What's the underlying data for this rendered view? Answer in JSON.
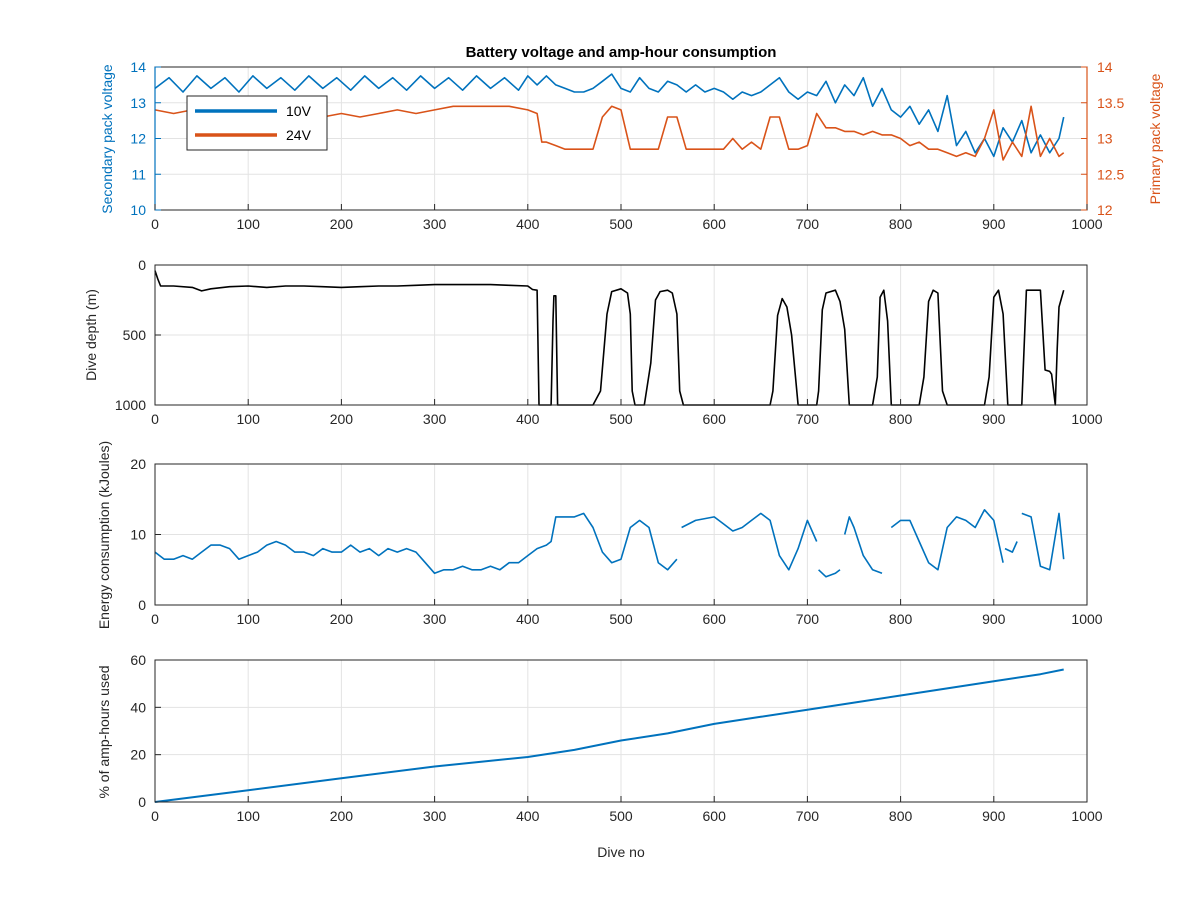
{
  "figure": {
    "background": "#ffffff"
  },
  "colors": {
    "blue": "#0072BD",
    "orange": "#D95319",
    "black": "#000000",
    "axis": "#262626",
    "grid": "#e3e3e3"
  },
  "chart_data": [
    {
      "type": "line",
      "title": "Battery voltage and amp-hour consumption",
      "xlabel": "",
      "ylabel": "Secondary pack voltage",
      "ylabel_right": "Primary pack voltage",
      "xlim": [
        0,
        1000
      ],
      "ylim": [
        10,
        14
      ],
      "ylim_right": [
        12,
        14
      ],
      "xticks": [
        0,
        100,
        200,
        300,
        400,
        500,
        600,
        700,
        800,
        900,
        1000
      ],
      "yticks": [
        10,
        11,
        12,
        13,
        14
      ],
      "yticks_right": [
        12,
        12.5,
        13,
        13.5,
        14
      ],
      "ytick_labels_right": [
        "12",
        "12.5",
        "13",
        "13.5",
        "14"
      ],
      "grid": true,
      "legend_position": "top-left",
      "series": [
        {
          "name": "10V",
          "axis": "left",
          "color": "#0072BD",
          "x": [
            0,
            15,
            30,
            45,
            60,
            75,
            90,
            105,
            120,
            135,
            150,
            165,
            180,
            195,
            210,
            225,
            240,
            255,
            270,
            285,
            300,
            315,
            330,
            345,
            360,
            375,
            390,
            400,
            410,
            420,
            430,
            440,
            450,
            460,
            470,
            480,
            490,
            500,
            510,
            520,
            530,
            540,
            550,
            560,
            570,
            580,
            590,
            600,
            610,
            620,
            630,
            640,
            650,
            660,
            670,
            680,
            690,
            700,
            710,
            720,
            730,
            740,
            750,
            760,
            770,
            780,
            790,
            800,
            810,
            820,
            830,
            840,
            850,
            860,
            870,
            880,
            890,
            900,
            910,
            920,
            930,
            940,
            950,
            960,
            970,
            975
          ],
          "y": [
            13.4,
            13.7,
            13.3,
            13.75,
            13.4,
            13.7,
            13.3,
            13.75,
            13.4,
            13.7,
            13.35,
            13.75,
            13.4,
            13.7,
            13.35,
            13.75,
            13.4,
            13.7,
            13.35,
            13.75,
            13.4,
            13.7,
            13.35,
            13.75,
            13.4,
            13.7,
            13.35,
            13.75,
            13.5,
            13.75,
            13.5,
            13.4,
            13.3,
            13.3,
            13.4,
            13.6,
            13.8,
            13.4,
            13.3,
            13.7,
            13.4,
            13.3,
            13.6,
            13.5,
            13.3,
            13.5,
            13.3,
            13.4,
            13.3,
            13.1,
            13.3,
            13.2,
            13.3,
            13.5,
            13.7,
            13.3,
            13.1,
            13.3,
            13.2,
            13.6,
            13.0,
            13.5,
            13.2,
            13.7,
            12.9,
            13.4,
            12.8,
            12.6,
            12.9,
            12.4,
            12.8,
            12.2,
            13.2,
            11.8,
            12.2,
            11.6,
            12.0,
            11.5,
            12.3,
            11.9,
            12.5,
            11.6,
            12.1,
            11.6,
            12.0,
            12.6
          ]
        },
        {
          "name": "24V",
          "axis": "right",
          "color": "#D95319",
          "x": [
            0,
            20,
            40,
            60,
            80,
            100,
            120,
            140,
            160,
            180,
            200,
            220,
            240,
            260,
            280,
            300,
            320,
            340,
            360,
            380,
            400,
            410,
            415,
            420,
            430,
            440,
            450,
            460,
            470,
            480,
            490,
            500,
            510,
            520,
            530,
            540,
            550,
            560,
            570,
            580,
            590,
            600,
            610,
            620,
            630,
            640,
            650,
            660,
            670,
            680,
            690,
            700,
            710,
            720,
            730,
            740,
            750,
            760,
            770,
            780,
            790,
            800,
            810,
            820,
            830,
            840,
            850,
            860,
            870,
            880,
            890,
            900,
            910,
            920,
            930,
            940,
            950,
            960,
            970,
            975
          ],
          "y": [
            13.4,
            13.35,
            13.4,
            13.3,
            13.35,
            13.3,
            13.3,
            13.35,
            13.3,
            13.3,
            13.35,
            13.3,
            13.35,
            13.4,
            13.35,
            13.4,
            13.45,
            13.45,
            13.45,
            13.45,
            13.4,
            13.35,
            12.95,
            12.95,
            12.9,
            12.85,
            12.85,
            12.85,
            12.85,
            13.3,
            13.45,
            13.4,
            12.85,
            12.85,
            12.85,
            12.85,
            13.3,
            13.3,
            12.85,
            12.85,
            12.85,
            12.85,
            12.85,
            13.0,
            12.85,
            12.95,
            12.85,
            13.3,
            13.3,
            12.85,
            12.85,
            12.9,
            13.35,
            13.15,
            13.15,
            13.1,
            13.1,
            13.05,
            13.1,
            13.05,
            13.05,
            13.0,
            12.9,
            12.95,
            12.85,
            12.85,
            12.8,
            12.75,
            12.8,
            12.75,
            13.0,
            13.4,
            12.7,
            12.95,
            12.75,
            13.45,
            12.75,
            13.0,
            12.75,
            12.8
          ]
        }
      ]
    },
    {
      "type": "line",
      "title": "",
      "xlabel": "",
      "ylabel": "Dive depth (m)",
      "xlim": [
        0,
        1000
      ],
      "ylim": [
        0,
        1000
      ],
      "y_reversed": true,
      "xticks": [
        0,
        100,
        200,
        300,
        400,
        500,
        600,
        700,
        800,
        900,
        1000
      ],
      "yticks": [
        0,
        500,
        1000
      ],
      "grid": true,
      "series": [
        {
          "color": "#000000",
          "x": [
            0,
            3,
            6,
            20,
            40,
            50,
            60,
            80,
            100,
            120,
            140,
            160,
            180,
            200,
            220,
            240,
            260,
            280,
            300,
            320,
            340,
            360,
            380,
            400,
            405,
            410,
            412,
            415,
            418,
            420,
            423,
            425,
            427,
            428,
            430,
            432,
            435,
            450,
            470,
            478,
            485,
            490,
            500,
            507,
            510,
            512,
            515,
            520,
            525,
            532,
            537,
            542,
            550,
            555,
            560,
            563,
            567,
            570,
            590,
            610,
            630,
            650,
            660,
            663,
            668,
            673,
            678,
            683,
            690,
            710,
            712,
            716,
            720,
            730,
            735,
            740,
            745,
            760,
            770,
            775,
            778,
            782,
            786,
            790,
            800,
            820,
            825,
            830,
            835,
            840,
            845,
            850,
            870,
            890,
            895,
            900,
            905,
            910,
            915,
            930,
            935,
            940,
            945,
            950,
            955,
            960,
            962,
            966,
            968,
            970,
            975
          ],
          "y": [
            40,
            100,
            150,
            150,
            160,
            185,
            170,
            155,
            150,
            160,
            150,
            150,
            155,
            160,
            155,
            150,
            150,
            145,
            140,
            140,
            140,
            140,
            145,
            150,
            175,
            180,
            1000,
            1000,
            1000,
            1000,
            1000,
            1000,
            400,
            220,
            220,
            1000,
            1000,
            1000,
            1000,
            900,
            350,
            190,
            170,
            200,
            350,
            900,
            1000,
            1000,
            1000,
            700,
            250,
            190,
            180,
            200,
            350,
            900,
            1000,
            1000,
            1000,
            1000,
            1000,
            1000,
            1000,
            900,
            360,
            240,
            300,
            500,
            1000,
            1000,
            900,
            320,
            200,
            180,
            260,
            460,
            1000,
            1000,
            1000,
            800,
            230,
            180,
            400,
            1000,
            1000,
            1000,
            800,
            260,
            180,
            200,
            900,
            1000,
            1000,
            1000,
            800,
            230,
            180,
            350,
            1000,
            1000,
            180,
            180,
            180,
            180,
            750,
            760,
            780,
            1000,
            600,
            300,
            180
          ]
        }
      ]
    },
    {
      "type": "line",
      "title": "",
      "xlabel": "",
      "ylabel": "Energy consumption (kJoules)",
      "xlim": [
        0,
        1000
      ],
      "ylim": [
        0,
        20
      ],
      "xticks": [
        0,
        100,
        200,
        300,
        400,
        500,
        600,
        700,
        800,
        900,
        1000
      ],
      "yticks": [
        0,
        10,
        20
      ],
      "grid": true,
      "series": [
        {
          "color": "#0072BD",
          "x": [
            0,
            10,
            20,
            30,
            40,
            50,
            60,
            70,
            80,
            90,
            100,
            110,
            120,
            130,
            140,
            150,
            160,
            170,
            180,
            190,
            200,
            210,
            220,
            230,
            240,
            250,
            260,
            270,
            280,
            290,
            300,
            310,
            320,
            330,
            340,
            350,
            360,
            370,
            380,
            390,
            400,
            410,
            420,
            425,
            430,
            440,
            450,
            460,
            470,
            480,
            490,
            500,
            510,
            520,
            530,
            540,
            550,
            560,
            null,
            565,
            580,
            600,
            610,
            620,
            630,
            640,
            650,
            660,
            670,
            680,
            690,
            700,
            710,
            null,
            712,
            720,
            730,
            735,
            null,
            740,
            745,
            750,
            760,
            770,
            780,
            null,
            790,
            800,
            810,
            820,
            830,
            840,
            850,
            860,
            870,
            880,
            890,
            900,
            910,
            null,
            912,
            920,
            925,
            null,
            930,
            940,
            950,
            960,
            970,
            975
          ],
          "y": [
            7.5,
            6.5,
            6.5,
            7,
            6.5,
            7.5,
            8.5,
            8.5,
            8,
            6.5,
            7,
            7.5,
            8.5,
            9,
            8.5,
            7.5,
            7.5,
            7,
            8,
            7.5,
            7.5,
            8.5,
            7.5,
            8,
            7,
            8,
            7.5,
            8,
            7.5,
            6,
            4.5,
            5,
            5,
            5.5,
            5,
            5,
            5.5,
            5,
            6,
            6,
            7,
            8,
            8.5,
            9,
            12.5,
            12.5,
            12.5,
            13,
            11,
            7.5,
            6,
            6.5,
            11,
            12,
            11,
            6,
            5,
            6.5,
            null,
            11,
            12,
            12.5,
            11.5,
            10.5,
            11,
            12,
            13,
            12,
            7,
            5,
            8,
            12,
            9,
            null,
            5,
            4,
            4.5,
            5,
            null,
            10,
            12.5,
            11,
            7,
            5,
            4.5,
            null,
            11,
            12,
            12,
            9,
            6,
            5,
            11,
            12.5,
            12,
            11,
            13.5,
            12,
            6,
            null,
            8,
            7.5,
            9,
            null,
            13,
            12.5,
            5.5,
            5,
            13,
            6.5
          ]
        }
      ]
    },
    {
      "type": "line",
      "title": "",
      "xlabel": "Dive no",
      "ylabel": "% of amp-hours used",
      "xlim": [
        0,
        1000
      ],
      "ylim": [
        0,
        60
      ],
      "xticks": [
        0,
        100,
        200,
        300,
        400,
        500,
        600,
        700,
        800,
        900,
        1000
      ],
      "yticks": [
        0,
        20,
        40,
        60
      ],
      "grid": true,
      "series": [
        {
          "color": "#0072BD",
          "x": [
            0,
            100,
            200,
            300,
            400,
            450,
            500,
            550,
            600,
            650,
            700,
            750,
            800,
            850,
            900,
            950,
            975
          ],
          "y": [
            0,
            5,
            10,
            15,
            19,
            22,
            26,
            29,
            33,
            36,
            39,
            42,
            45,
            48,
            51,
            54,
            56
          ]
        }
      ]
    }
  ]
}
